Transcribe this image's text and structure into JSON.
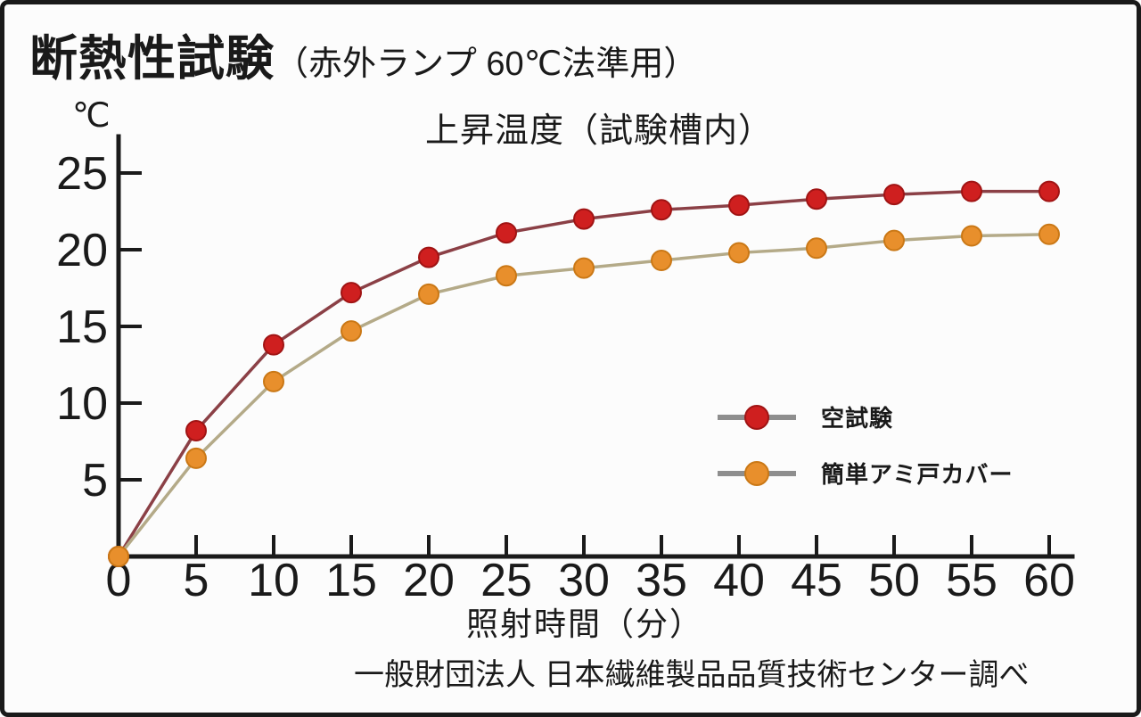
{
  "header": {
    "title": "断熱性試験",
    "subtitle": "（赤外ランプ 60℃法準用）"
  },
  "chart_data": {
    "type": "line",
    "title": "上昇温度（試験槽内）",
    "xlabel": "照射時間（分）",
    "ylabel": "℃",
    "source": "一般財団法人 日本繊維製品品質技術センター調べ",
    "x": [
      0,
      5,
      10,
      15,
      20,
      25,
      30,
      35,
      40,
      45,
      50,
      55,
      60
    ],
    "x_ticks": [
      0,
      5,
      10,
      15,
      20,
      25,
      30,
      35,
      40,
      45,
      50,
      55,
      60
    ],
    "y_ticks": [
      5,
      10,
      15,
      20,
      25
    ],
    "xlim": [
      0,
      60
    ],
    "ylim": [
      0,
      25
    ],
    "grid": false,
    "legend_position": "inside-right",
    "series": [
      {
        "name": "空試験",
        "marker_color": "#cf1f1f",
        "marker_edge": "#a01414",
        "line_color": "#8b4046",
        "values": [
          0,
          8.2,
          13.8,
          17.2,
          19.5,
          21.1,
          22.0,
          22.6,
          22.9,
          23.3,
          23.6,
          23.8,
          23.8
        ]
      },
      {
        "name": "簡単アミ戸カバー",
        "marker_color": "#e88f2c",
        "marker_edge": "#ca7816",
        "line_color": "#b4aa88",
        "values": [
          0,
          6.4,
          11.4,
          14.7,
          17.1,
          18.3,
          18.8,
          19.3,
          19.8,
          20.1,
          20.6,
          20.9,
          21.0
        ]
      }
    ],
    "colors": {
      "axis": "#1a1a1a",
      "legend_line": "#8e8e8e"
    }
  }
}
